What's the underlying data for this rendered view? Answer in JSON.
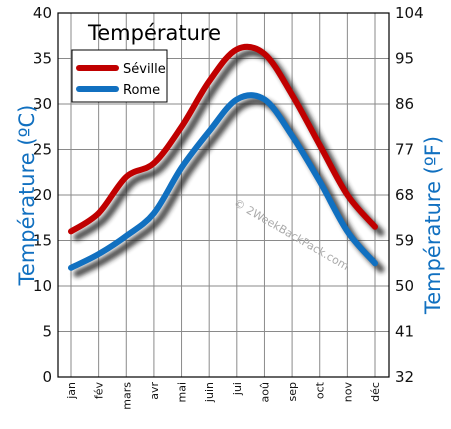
{
  "chart_data": {
    "type": "line",
    "title": "Température",
    "categories": [
      "jan",
      "fév",
      "mars",
      "avr",
      "mai",
      "juin",
      "jui",
      "aoû",
      "sep",
      "oct",
      "nov",
      "déc"
    ],
    "series": [
      {
        "name": "Séville",
        "color": "#c00000",
        "values": [
          16.0,
          18.0,
          22.0,
          23.5,
          27.5,
          32.5,
          36.0,
          35.5,
          31.0,
          25.5,
          20.0,
          16.5
        ]
      },
      {
        "name": "Rome",
        "color": "#1170c0",
        "values": [
          12.0,
          13.5,
          15.5,
          18.0,
          23.0,
          27.0,
          30.5,
          30.5,
          26.5,
          21.5,
          16.0,
          12.5
        ]
      }
    ],
    "ylabel": "Température  (ºC)",
    "ylabel_right": "Température (ºF)",
    "ylim": [
      0,
      40
    ],
    "yticks": [
      "0",
      "5",
      "10",
      "15",
      "20",
      "25",
      "30",
      "35",
      "40"
    ],
    "yticks_right": [
      "32",
      "41",
      "50",
      "59",
      "68",
      "77",
      "86",
      "95",
      "104"
    ],
    "grid": true,
    "legend_position": "top-left",
    "axis_title_color": "#1170c0",
    "watermark": "© 2WeekBackPack.com"
  }
}
